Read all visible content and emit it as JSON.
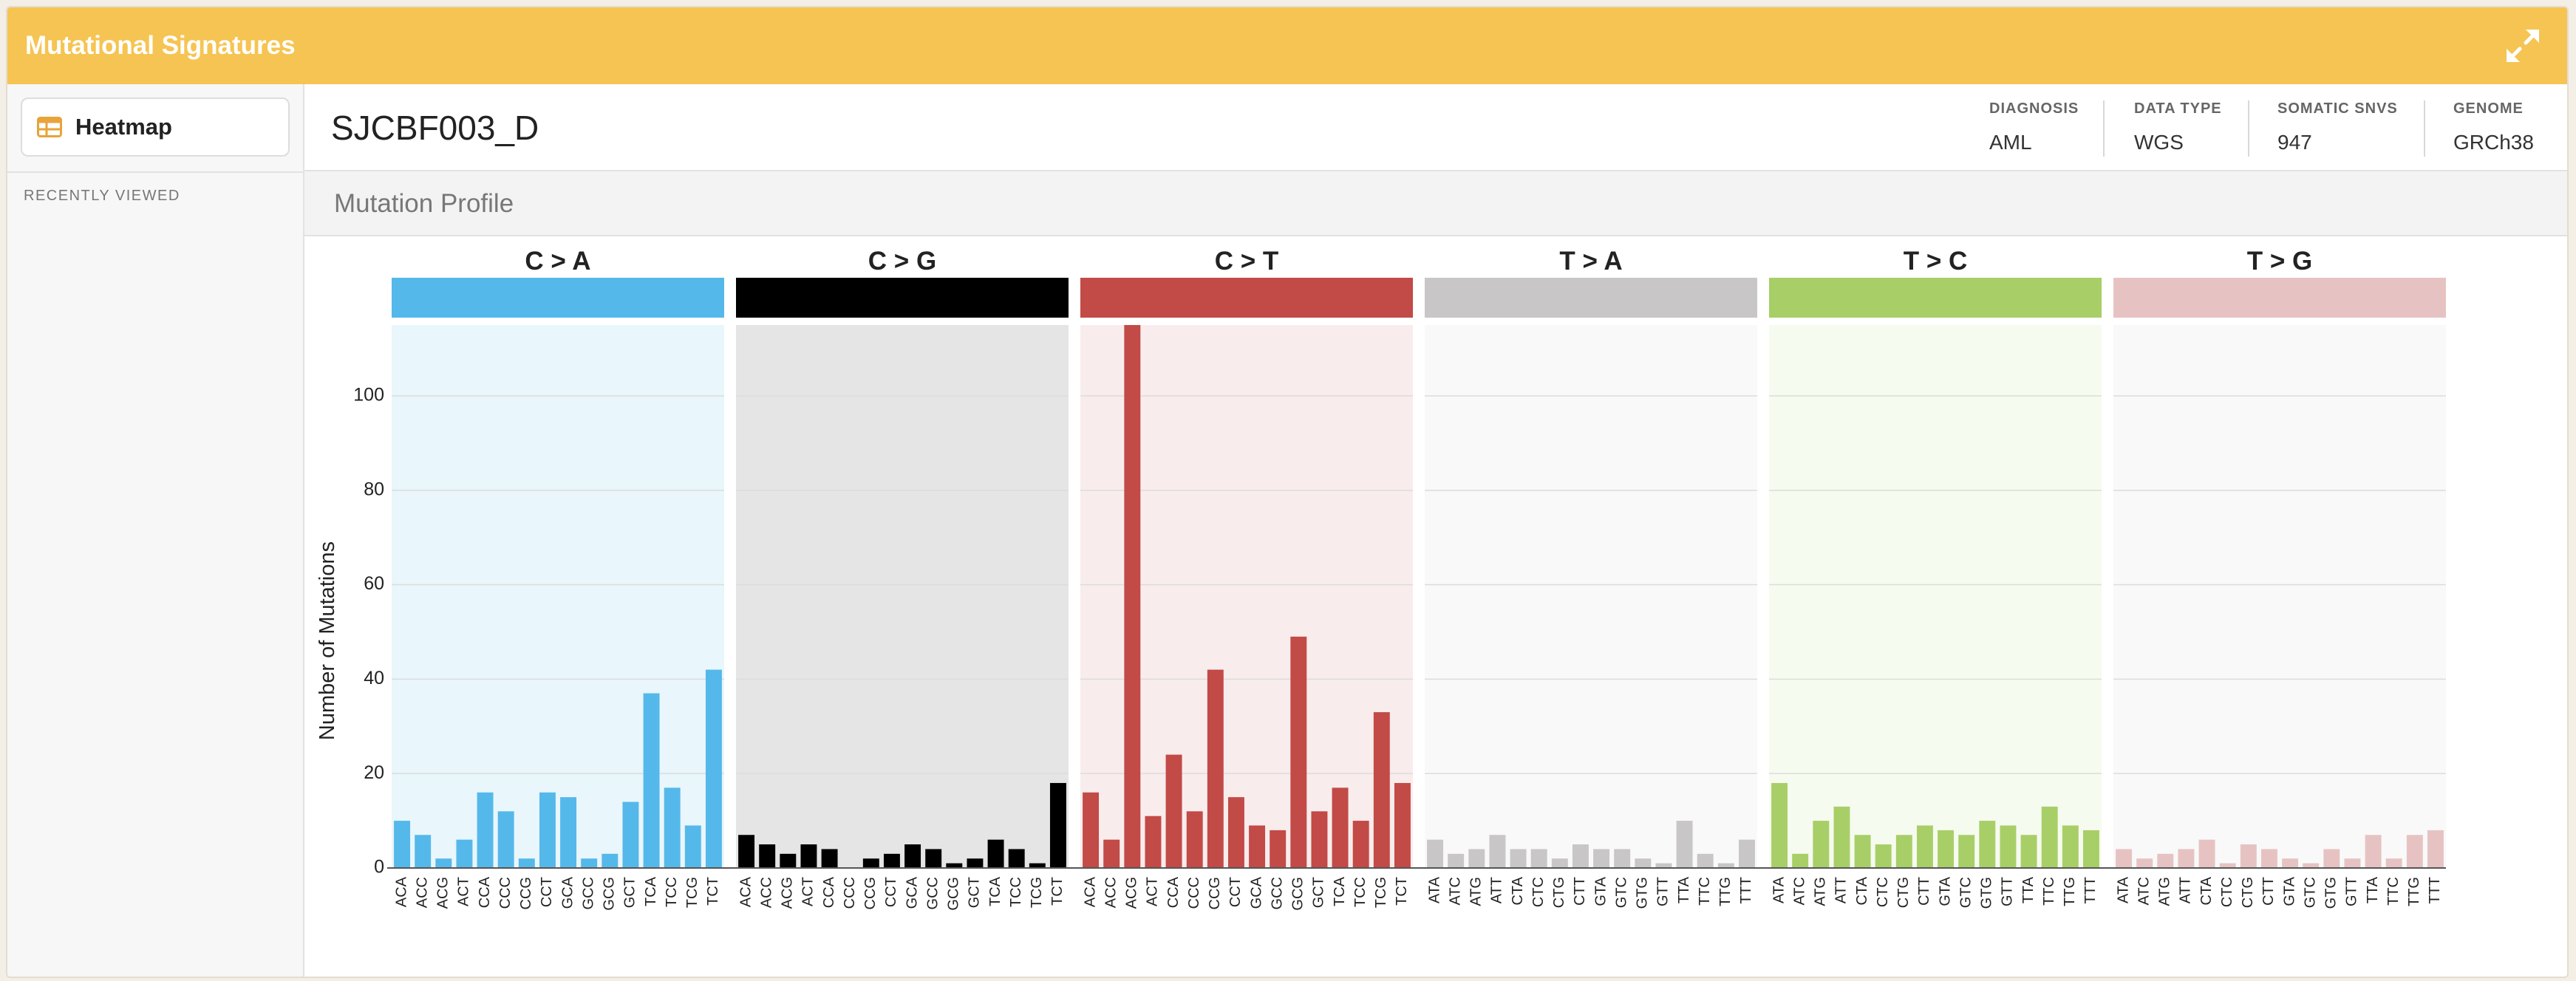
{
  "app": {
    "title": "Mutational Signatures"
  },
  "sidebar": {
    "nav_heatmap": "Heatmap",
    "recently_viewed": "RECENTLY VIEWED"
  },
  "sample": {
    "id": "SJCBF003_D",
    "meta": [
      {
        "label": "DIAGNOSIS",
        "value": "AML"
      },
      {
        "label": "DATA TYPE",
        "value": "WGS"
      },
      {
        "label": "SOMATIC SNVS",
        "value": "947"
      },
      {
        "label": "GENOME",
        "value": "GRCh38"
      }
    ]
  },
  "section": {
    "title": "Mutation Profile"
  },
  "colors": {
    "header": "#f6c452",
    "heatmap_icon": "#e8a33a"
  },
  "chart_data": {
    "type": "bar",
    "ylabel": "Number of Mutations",
    "ylim": [
      0,
      115
    ],
    "yticks": [
      0,
      20,
      40,
      60,
      80,
      100
    ],
    "grid": true,
    "panels": [
      {
        "name": "C > A",
        "color": "#55b8ea",
        "bg": "#e9f6fb",
        "categories": [
          "ACA",
          "ACC",
          "ACG",
          "ACT",
          "CCA",
          "CCC",
          "CCG",
          "CCT",
          "GCA",
          "GCC",
          "GCG",
          "GCT",
          "TCA",
          "TCC",
          "TCG",
          "TCT"
        ],
        "values": [
          10,
          7,
          2,
          6,
          16,
          12,
          2,
          16,
          15,
          2,
          3,
          14,
          37,
          17,
          9,
          42
        ]
      },
      {
        "name": "C > G",
        "color": "#000000",
        "bg": "#e5e5e5",
        "categories": [
          "ACA",
          "ACC",
          "ACG",
          "ACT",
          "CCA",
          "CCC",
          "CCG",
          "CCT",
          "GCA",
          "GCC",
          "GCG",
          "GCT",
          "TCA",
          "TCC",
          "TCG",
          "TCT"
        ],
        "values": [
          7,
          5,
          3,
          5,
          4,
          0,
          2,
          3,
          5,
          4,
          1,
          2,
          6,
          4,
          1,
          18
        ]
      },
      {
        "name": "C > T",
        "color": "#c24a47",
        "bg": "#f9ecec",
        "categories": [
          "ACA",
          "ACC",
          "ACG",
          "ACT",
          "CCA",
          "CCC",
          "CCG",
          "CCT",
          "GCA",
          "GCC",
          "GCG",
          "GCT",
          "TCA",
          "TCC",
          "TCG",
          "TCT"
        ],
        "values": [
          16,
          6,
          115,
          11,
          24,
          12,
          42,
          15,
          9,
          8,
          49,
          12,
          17,
          10,
          33,
          18
        ]
      },
      {
        "name": "T > A",
        "color": "#c8c6c7",
        "bg": "#f9f9f9",
        "categories": [
          "ATA",
          "ATC",
          "ATG",
          "ATT",
          "CTA",
          "CTC",
          "CTG",
          "CTT",
          "GTA",
          "GTC",
          "GTG",
          "GTT",
          "TTA",
          "TTC",
          "TTG",
          "TTT"
        ],
        "values": [
          6,
          3,
          4,
          7,
          4,
          4,
          2,
          5,
          4,
          4,
          2,
          1,
          10,
          3,
          1,
          6
        ]
      },
      {
        "name": "T > C",
        "color": "#a8cf67",
        "bg": "#f6fbef",
        "categories": [
          "ATA",
          "ATC",
          "ATG",
          "ATT",
          "CTA",
          "CTC",
          "CTG",
          "CTT",
          "GTA",
          "GTC",
          "GTG",
          "GTT",
          "TTA",
          "TTC",
          "TTG",
          "TTT"
        ],
        "values": [
          18,
          3,
          10,
          13,
          7,
          5,
          7,
          9,
          8,
          7,
          10,
          9,
          7,
          13,
          9,
          8
        ]
      },
      {
        "name": "T > G",
        "color": "#e6c3c2",
        "bg": "#f9f9f9",
        "categories": [
          "ATA",
          "ATC",
          "ATG",
          "ATT",
          "CTA",
          "CTC",
          "CTG",
          "CTT",
          "GTA",
          "GTC",
          "GTG",
          "GTT",
          "TTA",
          "TTC",
          "TTG",
          "TTT"
        ],
        "values": [
          4,
          2,
          3,
          4,
          6,
          1,
          5,
          4,
          2,
          1,
          4,
          2,
          7,
          2,
          7,
          8
        ]
      }
    ]
  }
}
